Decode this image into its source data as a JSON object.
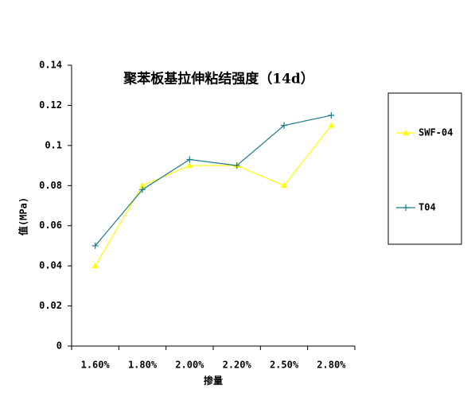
{
  "chart_data": {
    "type": "line",
    "title": "聚苯板基拉伸粘结强度（14d）",
    "x_label": "掺量",
    "y_label": "值(MPa)",
    "categories": [
      "1.60%",
      "1.80%",
      "2.00%",
      "2.20%",
      "2.50%",
      "2.80%"
    ],
    "series": [
      {
        "name": "SWF-04",
        "color": "#ffff00",
        "marker": "triangle",
        "values": [
          0.04,
          0.08,
          0.09,
          0.09,
          0.08,
          0.11
        ]
      },
      {
        "name": "T04",
        "color": "#1f7a8c",
        "marker": "plus",
        "values": [
          0.05,
          0.078,
          0.093,
          0.09,
          0.11,
          0.115
        ]
      }
    ],
    "ylim": [
      0,
      0.14
    ],
    "yticks": [
      0,
      0.02,
      0.04,
      0.06,
      0.08,
      0.1,
      0.12,
      0.14
    ],
    "grid": false,
    "legend": "right"
  }
}
